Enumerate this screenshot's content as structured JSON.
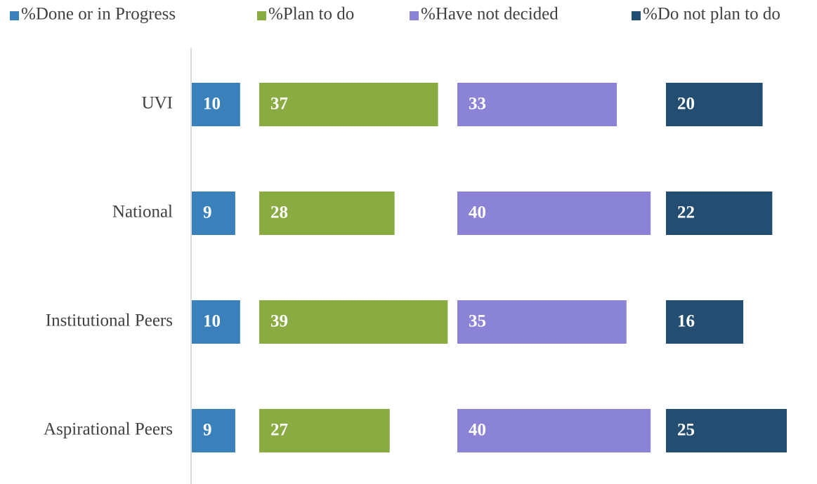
{
  "chart_data": {
    "type": "bar",
    "categories": [
      "UVI",
      "National",
      "Institutional Peers",
      "Aspirational Peers"
    ],
    "series": [
      {
        "name": "%Done or in Progress",
        "color": "#3a80bb",
        "values": [
          10,
          9,
          10,
          9
        ]
      },
      {
        "name": "%Plan to do",
        "color": "#8aab42",
        "values": [
          37,
          28,
          39,
          27
        ]
      },
      {
        "name": "%Have not decided",
        "color": "#8b83d5",
        "values": [
          33,
          40,
          35,
          40
        ]
      },
      {
        "name": "%Do not plan to do",
        "color": "#244e71",
        "values": [
          20,
          22,
          16,
          25
        ]
      }
    ],
    "legend": "top"
  }
}
